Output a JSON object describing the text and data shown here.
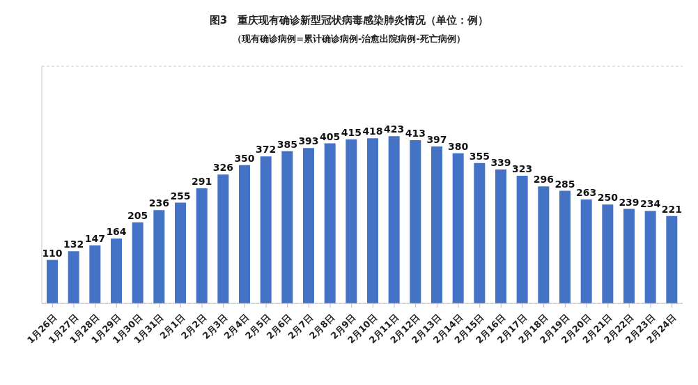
{
  "chart_data": {
    "type": "bar",
    "title": "图3　重庆现有确诊新型冠状病毒感染肺炎情况（单位：例）",
    "subtitle": "（现有确诊病例=累计确诊病例-治愈出院病例-死亡病例）",
    "categories": [
      "1月26日",
      "1月27日",
      "1月28日",
      "1月29日",
      "1月30日",
      "1月31日",
      "2月1日",
      "2月2日",
      "2月3日",
      "2月4日",
      "2月5日",
      "2月6日",
      "2月7日",
      "2月8日",
      "2月9日",
      "2月10日",
      "2月11日",
      "2月12日",
      "2月13日",
      "2月14日",
      "2月15日",
      "2月16日",
      "2月17日",
      "2月18日",
      "2月19日",
      "2月20日",
      "2月21日",
      "2月22日",
      "2月23日",
      "2月24日"
    ],
    "values": [
      110,
      132,
      147,
      164,
      205,
      236,
      255,
      291,
      326,
      350,
      372,
      385,
      393,
      405,
      415,
      418,
      423,
      413,
      397,
      380,
      355,
      339,
      323,
      296,
      285,
      263,
      250,
      239,
      234,
      221
    ],
    "color": "#4472c4",
    "data_labels": true,
    "ylim": [
      0,
      600
    ],
    "grid": "y",
    "tick_labels": "x"
  }
}
